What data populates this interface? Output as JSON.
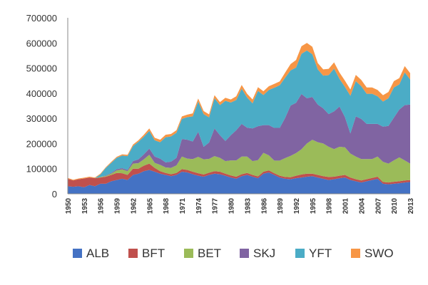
{
  "chart_data": {
    "type": "area",
    "stacked": true,
    "title": "",
    "xlabel": "",
    "ylabel": "",
    "ylim": [
      0,
      700000
    ],
    "yticks": [
      "700000",
      "600000",
      "500000",
      "400000",
      "300000",
      "200000",
      "100000",
      "0"
    ],
    "grid": false,
    "legend": "bottom",
    "x_tick_labels": [
      "1950",
      "1953",
      "1956",
      "1959",
      "1962",
      "1965",
      "1968",
      "1971",
      "1974",
      "1977",
      "1980",
      "1983",
      "1986",
      "1989",
      "1992",
      "1995",
      "1998",
      "2001",
      "2004",
      "2007",
      "2010",
      "2013"
    ],
    "x": [
      1950,
      1951,
      1952,
      1953,
      1954,
      1955,
      1956,
      1957,
      1958,
      1959,
      1960,
      1961,
      1962,
      1963,
      1964,
      1965,
      1966,
      1967,
      1968,
      1969,
      1970,
      1971,
      1972,
      1973,
      1974,
      1975,
      1976,
      1977,
      1978,
      1979,
      1980,
      1981,
      1982,
      1983,
      1984,
      1985,
      1986,
      1987,
      1988,
      1989,
      1990,
      1991,
      1992,
      1993,
      1994,
      1995,
      1996,
      1997,
      1998,
      1999,
      2000,
      2001,
      2002,
      2003,
      2004,
      2005,
      2006,
      2007,
      2008,
      2009,
      2010,
      2011,
      2012,
      2013
    ],
    "series": [
      {
        "name": "ALB",
        "color": "#4472C4",
        "values": [
          30000,
          28000,
          30000,
          26000,
          35000,
          30000,
          40000,
          40000,
          50000,
          55000,
          60000,
          55000,
          75000,
          80000,
          90000,
          95000,
          88000,
          80000,
          75000,
          70000,
          75000,
          88000,
          85000,
          78000,
          72000,
          68000,
          75000,
          80000,
          78000,
          72000,
          65000,
          60000,
          70000,
          75000,
          68000,
          62000,
          80000,
          85000,
          75000,
          65000,
          60000,
          58000,
          62000,
          65000,
          68000,
          70000,
          65000,
          60000,
          55000,
          58000,
          62000,
          65000,
          55000,
          50000,
          45000,
          50000,
          55000,
          60000,
          40000,
          38000,
          40000,
          42000,
          45000,
          47000
        ]
      },
      {
        "name": "BFT",
        "color": "#C0504D",
        "values": [
          30000,
          25000,
          28000,
          35000,
          30000,
          32000,
          25000,
          28000,
          25000,
          28000,
          22000,
          20000,
          25000,
          20000,
          22000,
          25000,
          15000,
          10000,
          8000,
          8000,
          8000,
          10000,
          10000,
          10000,
          10000,
          9000,
          9000,
          10000,
          10000,
          8000,
          8000,
          8000,
          8000,
          8000,
          7000,
          7000,
          8000,
          8000,
          7000,
          7000,
          7000,
          8000,
          10000,
          12000,
          12000,
          10000,
          10000,
          10000,
          12000,
          10000,
          10000,
          10000,
          10000,
          8000,
          8000,
          8000,
          8000,
          8000,
          7000,
          7000,
          8000,
          8000,
          8000,
          8000
        ]
      },
      {
        "name": "BET",
        "color": "#9BBB59",
        "values": [
          0,
          0,
          0,
          0,
          0,
          0,
          2000,
          3000,
          5000,
          10000,
          15000,
          15000,
          20000,
          22000,
          25000,
          35000,
          20000,
          25000,
          22000,
          25000,
          30000,
          50000,
          45000,
          50000,
          65000,
          60000,
          55000,
          60000,
          55000,
          50000,
          60000,
          65000,
          70000,
          65000,
          55000,
          65000,
          75000,
          60000,
          50000,
          60000,
          75000,
          85000,
          90000,
          100000,
          120000,
          135000,
          130000,
          130000,
          120000,
          110000,
          115000,
          110000,
          95000,
          90000,
          85000,
          80000,
          75000,
          80000,
          80000,
          75000,
          85000,
          95000,
          80000,
          65000
        ]
      },
      {
        "name": "SKJ",
        "color": "#8064A2",
        "values": [
          0,
          0,
          0,
          0,
          0,
          0,
          0,
          2000,
          3000,
          5000,
          5000,
          5000,
          10000,
          15000,
          20000,
          25000,
          25000,
          25000,
          20000,
          25000,
          30000,
          70000,
          75000,
          70000,
          100000,
          50000,
          65000,
          110000,
          90000,
          80000,
          100000,
          120000,
          130000,
          115000,
          130000,
          135000,
          110000,
          120000,
          130000,
          130000,
          160000,
          200000,
          200000,
          220000,
          180000,
          170000,
          150000,
          140000,
          130000,
          150000,
          160000,
          120000,
          80000,
          160000,
          160000,
          140000,
          140000,
          130000,
          140000,
          150000,
          170000,
          190000,
          220000,
          235000
        ]
      },
      {
        "name": "YFT",
        "color": "#4BACC6",
        "values": [
          0,
          0,
          0,
          0,
          0,
          0,
          10000,
          30000,
          40000,
          45000,
          50000,
          55000,
          60000,
          70000,
          70000,
          70000,
          65000,
          65000,
          100000,
          100000,
          100000,
          80000,
          90000,
          100000,
          120000,
          130000,
          100000,
          120000,
          120000,
          160000,
          130000,
          120000,
          140000,
          120000,
          100000,
          140000,
          120000,
          140000,
          160000,
          170000,
          160000,
          140000,
          140000,
          160000,
          190000,
          170000,
          140000,
          130000,
          155000,
          170000,
          110000,
          120000,
          150000,
          140000,
          130000,
          120000,
          120000,
          110000,
          100000,
          110000,
          120000,
          100000,
          130000,
          100000
        ]
      },
      {
        "name": "SWO",
        "color": "#F79646",
        "values": [
          3000,
          3000,
          3000,
          3000,
          3000,
          3000,
          3000,
          3000,
          4000,
          4000,
          5000,
          5000,
          6000,
          6000,
          8000,
          10000,
          10000,
          10000,
          10000,
          10000,
          10000,
          10000,
          10000,
          12000,
          12000,
          12000,
          12000,
          12000,
          12000,
          12000,
          12000,
          15000,
          15000,
          15000,
          15000,
          15000,
          15000,
          15000,
          15000,
          15000,
          20000,
          25000,
          30000,
          30000,
          30000,
          30000,
          25000,
          25000,
          25000,
          25000,
          25000,
          25000,
          25000,
          25000,
          25000,
          25000,
          25000,
          25000,
          25000,
          25000,
          25000,
          25000,
          25000,
          25000
        ]
      }
    ]
  }
}
